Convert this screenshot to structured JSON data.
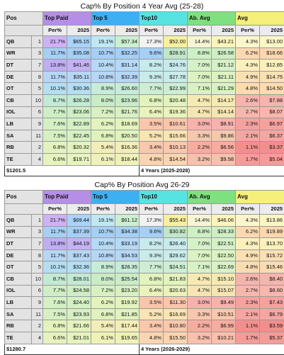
{
  "tables": [
    {
      "title": "Cap% By Position 4 Year Avg (25-28)",
      "footer_left": "$1201.5",
      "footer_right": "4 Years (2025-2028)",
      "rows": [
        {
          "pos": "QB",
          "n": "1",
          "c": [
            "21.7%",
            "$65.15",
            "19.1%",
            "$57.34",
            "17.3%",
            "$52.00",
            "14.4%",
            "$43.21",
            "4.3%",
            "$13.00"
          ]
        },
        {
          "pos": "WR",
          "n": "3",
          "c": [
            "11.7%",
            "$35.08",
            "10.7%",
            "$32.25",
            "9.6%",
            "$28.91",
            "8.8%",
            "$26.58",
            "6.2%",
            "$18.66"
          ]
        },
        {
          "pos": "DT",
          "n": "7",
          "c": [
            "13.8%",
            "$41.46",
            "10.4%",
            "$31.14",
            "8.2%",
            "$24.76",
            "7.0%",
            "$21.12",
            "4.3%",
            "$12.85"
          ]
        },
        {
          "pos": "DE",
          "n": "8",
          "c": [
            "11.7%",
            "$35.11",
            "10.8%",
            "$32.39",
            "9.3%",
            "$27.78",
            "7.0%",
            "$21.11",
            "4.9%",
            "$14.75"
          ]
        },
        {
          "pos": "OT",
          "n": "5",
          "c": [
            "10.1%",
            "$30.36",
            "8.9%",
            "$26.60",
            "7.7%",
            "$22.99",
            "7.1%",
            "$21.29",
            "4.8%",
            "$14.50"
          ]
        },
        {
          "pos": "CB",
          "n": "10",
          "c": [
            "8.7%",
            "$26.28",
            "8.0%",
            "$23.96",
            "6.8%",
            "$20.48",
            "4.7%",
            "$14.17",
            "2.6%",
            "$7.88"
          ]
        },
        {
          "pos": "IOL",
          "n": "6",
          "c": [
            "7.7%",
            "$23.06",
            "7.2%",
            "$21.76",
            "6.4%",
            "$19.36",
            "4.7%",
            "$14.14",
            "2.7%",
            "$8.07"
          ]
        },
        {
          "pos": "LB",
          "n": "9",
          "c": [
            "7.6%",
            "$22.89",
            "6.2%",
            "$18.69",
            "3.5%",
            "$10.61",
            "3.0%",
            "$8.91",
            "2.3%",
            "$6.97"
          ]
        },
        {
          "pos": "SA",
          "n": "11",
          "c": [
            "7.5%",
            "$22.45",
            "6.8%",
            "$20.50",
            "5.2%",
            "$15.66",
            "3.3%",
            "$9.86",
            "2.1%",
            "$6.37"
          ]
        },
        {
          "pos": "RB",
          "n": "2",
          "c": [
            "6.8%",
            "$20.32",
            "5.4%",
            "$16.36",
            "3.4%",
            "$10.13",
            "2.2%",
            "$6.56",
            "1.1%",
            "$3.37"
          ]
        },
        {
          "pos": "TE",
          "n": "4",
          "c": [
            "6.6%",
            "$19.71",
            "6.1%",
            "$18.44",
            "4.8%",
            "$14.54",
            "3.2%",
            "$9.58",
            "1.7%",
            "$5.04"
          ]
        }
      ]
    },
    {
      "title": "Cap% By Position Avg 26-29",
      "footer_left": "$1280.7",
      "footer_right": "4 Years (2026-2029)",
      "rows": [
        {
          "pos": "QB",
          "n": "1",
          "c": [
            "21.7%",
            "$69.44",
            "19.1%",
            "$61.12",
            "17.3%",
            "$55.43",
            "14.4%",
            "$46.06",
            "4.3%",
            "$13.86"
          ]
        },
        {
          "pos": "WR",
          "n": "3",
          "c": [
            "11.7%",
            "$37.39",
            "10.7%",
            "$34.38",
            "9.6%",
            "$30.82",
            "8.8%",
            "$28.33",
            "6.2%",
            "$19.89"
          ]
        },
        {
          "pos": "DT",
          "n": "7",
          "c": [
            "13.8%",
            "$44.19",
            "10.4%",
            "$33.19",
            "8.2%",
            "$26.40",
            "7.0%",
            "$22.51",
            "4.3%",
            "$13.70"
          ]
        },
        {
          "pos": "DE",
          "n": "8",
          "c": [
            "11.7%",
            "$37.43",
            "10.8%",
            "$34.53",
            "9.3%",
            "$29.62",
            "7.0%",
            "$22.50",
            "4.9%",
            "$15.72"
          ]
        },
        {
          "pos": "OT",
          "n": "5",
          "c": [
            "10.1%",
            "$32.36",
            "8.9%",
            "$28.35",
            "7.7%",
            "$24.51",
            "7.1%",
            "$22.69",
            "4.8%",
            "$15.46"
          ]
        },
        {
          "pos": "CB",
          "n": "10",
          "c": [
            "8.7%",
            "$28.01",
            "8.0%",
            "$25.54",
            "6.8%",
            "$21.83",
            "4.7%",
            "$15.10",
            "2.6%",
            "$8.40"
          ]
        },
        {
          "pos": "IOL",
          "n": "6",
          "c": [
            "7.7%",
            "$24.58",
            "7.2%",
            "$23.20",
            "6.4%",
            "$20.63",
            "4.7%",
            "$15.07",
            "2.7%",
            "$8.60"
          ]
        },
        {
          "pos": "LB",
          "n": "9",
          "c": [
            "7.6%",
            "$24.40",
            "6.2%",
            "$19.92",
            "3.5%",
            "$11.30",
            "3.0%",
            "$9.49",
            "2.3%",
            "$7.43"
          ]
        },
        {
          "pos": "SA",
          "n": "11",
          "c": [
            "7.5%",
            "$23.93",
            "6.8%",
            "$21.85",
            "5.2%",
            "$16.69",
            "3.3%",
            "$10.51",
            "2.1%",
            "$6.79"
          ]
        },
        {
          "pos": "RB",
          "n": "2",
          "c": [
            "6.8%",
            "$21.66",
            "5.4%",
            "$17.44",
            "3.4%",
            "$10.80",
            "2.2%",
            "$6.99",
            "1.1%",
            "$3.59"
          ]
        },
        {
          "pos": "TE",
          "n": "4",
          "c": [
            "6.6%",
            "$21.01",
            "6.1%",
            "$19.65",
            "4.8%",
            "$15.50",
            "3.2%",
            "$10.21",
            "1.7%",
            "$5.37"
          ]
        }
      ]
    }
  ],
  "headers": {
    "pos": "Pos",
    "groups": [
      "Top Paid",
      "Top 5",
      "Top10",
      "Ab. Avg",
      "Avg"
    ],
    "per": "Per%",
    "year": "2025"
  },
  "colors": {
    "group_headers": [
      "#b58ee8",
      "#3db0f3",
      "#58e3e3",
      "#7fe07f",
      "#f4f07a"
    ],
    "rows": {
      "QB": [
        "#cfb1f5",
        "#a9d3f8",
        "#bfe8f2",
        "#ccefcf",
        "#f2f2f2",
        "#f7f0a0",
        "#f6f6d6",
        "#fbf5bd",
        "#fbf6cc",
        "#fbf6c4"
      ],
      "WR": [
        "#a6cff6",
        "#a6cff6",
        "#a6cff6",
        "#a6cff6",
        "#a6cff6",
        "#c2e6c8",
        "#cff0c6",
        "#cfeec5",
        "#fbd9b0",
        "#fbd7af"
      ],
      "DT": [
        "#bfaef3",
        "#c4b2f4",
        "#b5d9f6",
        "#b5d9f6",
        "#c8eaec",
        "#c8eaec",
        "#d5f1c8",
        "#d5f1c8",
        "#fbf0bc",
        "#fbf0bc"
      ],
      "DE": [
        "#b6d6f6",
        "#b6d6f6",
        "#b6d6f6",
        "#b6d6f6",
        "#c9ecea",
        "#c9ecea",
        "#dcf2c2",
        "#dcf2c2",
        "#fae0b3",
        "#fae0b3"
      ],
      "OT": [
        "#b4def2",
        "#b4def2",
        "#c7ecd8",
        "#c7ecd8",
        "#cdeed3",
        "#cdeed3",
        "#d8f1c6",
        "#d8f1c6",
        "#fadcb2",
        "#fadcb2"
      ],
      "CB": [
        "#c3ead4",
        "#c3ead4",
        "#c9ecc7",
        "#c9ecc7",
        "#e2f3be",
        "#e2f3be",
        "#f5eab4",
        "#f5eab4",
        "#f7b3ad",
        "#f7b3ad"
      ],
      "IOL": [
        "#cfeec5",
        "#cfeec5",
        "#d8f0c2",
        "#d8f0c2",
        "#e9f3bb",
        "#e9f3bb",
        "#f6e5b3",
        "#f6e5b3",
        "#f7b7ad",
        "#f7b7ad"
      ],
      "LB": [
        "#d4f0c4",
        "#d4f0c4",
        "#e3f3bd",
        "#e3f3bd",
        "#f9c6ac",
        "#f9c6ac",
        "#f7b2ad",
        "#f7b2ad",
        "#f5a29f",
        "#f5a29f"
      ],
      "SA": [
        "#d7f0c3",
        "#d7f0c3",
        "#e0f2be",
        "#e0f2be",
        "#f9e4b4",
        "#f9e4b4",
        "#f8c7ae",
        "#f8c7ae",
        "#f5a6a2",
        "#f5a6a2"
      ],
      "RB": [
        "#e4f3bd",
        "#e4f3bd",
        "#f3edb8",
        "#f3edb8",
        "#f9c8ad",
        "#f9c8ad",
        "#f6ad9f",
        "#f6ad9f",
        "#f28f8d",
        "#f28f8d"
      ],
      "TE": [
        "#e6f3bd",
        "#e6f3bd",
        "#eef2b8",
        "#eef2b8",
        "#fbd5b1",
        "#fbd5b1",
        "#f8c0ad",
        "#f8c0ad",
        "#f49c99",
        "#f49c99"
      ]
    }
  }
}
